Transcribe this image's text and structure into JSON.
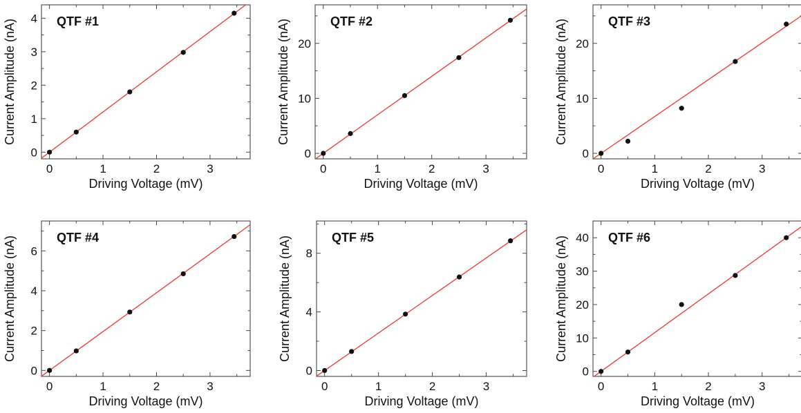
{
  "chart_data": [
    {
      "type": "scatter",
      "title": "QTF #1",
      "xlabel": "Driving Voltage (mV)",
      "ylabel": "Current Amplitude (nA)",
      "xlim": [
        -0.15,
        3.75
      ],
      "ylim": [
        -0.2,
        4.4
      ],
      "xticks": [
        0,
        1,
        2,
        3
      ],
      "yticks": [
        0,
        1,
        2,
        3,
        4
      ],
      "points": {
        "x": [
          0,
          0.5,
          1.5,
          2.5,
          3.45
        ],
        "y": [
          0,
          0.6,
          1.8,
          2.98,
          4.15
        ]
      },
      "fit": {
        "slope": 1.2,
        "intercept": 0
      },
      "colors": {
        "points": "#111111",
        "fit": "#e8473a"
      }
    },
    {
      "type": "scatter",
      "title": "QTF #2",
      "xlabel": "Driving Voltage (mV)",
      "ylabel": "Current Amplitude (nA)",
      "xlim": [
        -0.15,
        3.75
      ],
      "ylim": [
        -1,
        27
      ],
      "xticks": [
        0,
        1,
        2,
        3
      ],
      "yticks": [
        0,
        10,
        20
      ],
      "points": {
        "x": [
          0,
          0.5,
          1.5,
          2.5,
          3.45
        ],
        "y": [
          0,
          3.6,
          10.5,
          17.4,
          24.2
        ]
      },
      "fit": {
        "slope": 7.0,
        "intercept": 0
      },
      "colors": {
        "points": "#111111",
        "fit": "#e8473a"
      }
    },
    {
      "type": "scatter",
      "title": "QTF #3",
      "xlabel": "Driving Voltage (mV)",
      "ylabel": "Current Amplitude (nA)",
      "xlim": [
        -0.15,
        3.75
      ],
      "ylim": [
        -1,
        27
      ],
      "xticks": [
        0,
        1,
        2,
        3
      ],
      "yticks": [
        0,
        10,
        20
      ],
      "points": {
        "x": [
          0,
          0.5,
          1.5,
          2.5,
          3.45
        ],
        "y": [
          0,
          2.2,
          8.2,
          16.7,
          23.5
        ]
      },
      "fit": {
        "slope": 6.7,
        "intercept": 0
      },
      "colors": {
        "points": "#111111",
        "fit": "#e8473a"
      }
    },
    {
      "type": "scatter",
      "title": "QTF #4",
      "xlabel": "Driving Voltage (mV)",
      "ylabel": "Current Amplitude (nA)",
      "xlim": [
        -0.15,
        3.75
      ],
      "ylim": [
        -0.3,
        7.5
      ],
      "xticks": [
        0,
        1,
        2,
        3
      ],
      "yticks": [
        0,
        2,
        4,
        6
      ],
      "points": {
        "x": [
          0,
          0.5,
          1.5,
          2.5,
          3.45
        ],
        "y": [
          0,
          0.98,
          2.93,
          4.85,
          6.72
        ]
      },
      "fit": {
        "slope": 1.95,
        "intercept": 0
      },
      "colors": {
        "points": "#111111",
        "fit": "#e8473a"
      }
    },
    {
      "type": "scatter",
      "title": "QTF #5",
      "xlabel": "Driving Voltage (mV)",
      "ylabel": "Current Amplitude (nA)",
      "xlim": [
        -0.15,
        3.75
      ],
      "ylim": [
        -0.4,
        10.2
      ],
      "xticks": [
        0,
        1,
        2,
        3
      ],
      "yticks": [
        0,
        4,
        8
      ],
      "points": {
        "x": [
          0,
          0.5,
          1.5,
          2.5,
          3.45
        ],
        "y": [
          0,
          1.3,
          3.85,
          6.38,
          8.85
        ]
      },
      "fit": {
        "slope": 2.56,
        "intercept": 0
      },
      "colors": {
        "points": "#111111",
        "fit": "#e8473a"
      }
    },
    {
      "type": "scatter",
      "title": "QTF #6",
      "xlabel": "Driving Voltage (mV)",
      "ylabel": "Current Amplitude (nA)",
      "xlim": [
        -0.15,
        3.75
      ],
      "ylim": [
        -1.5,
        45
      ],
      "xticks": [
        0,
        1,
        2,
        3
      ],
      "yticks": [
        0,
        10,
        20,
        30,
        40
      ],
      "points": {
        "x": [
          0,
          0.5,
          1.5,
          2.5,
          3.45
        ],
        "y": [
          0,
          5.8,
          20.0,
          28.7,
          40.0
        ]
      },
      "fit": {
        "slope": 11.6,
        "intercept": 0
      },
      "colors": {
        "points": "#111111",
        "fit": "#e8473a"
      }
    }
  ]
}
